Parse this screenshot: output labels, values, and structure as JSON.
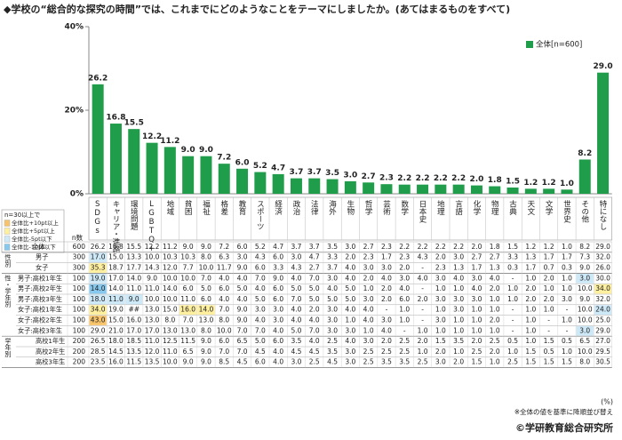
{
  "chart_data": {
    "type": "bar",
    "title": "◆学校の“総合的な探究の時間”では、これまでにどのようなことをテーマにしましたか。(あてはまるものをすべて)",
    "categories": [
      "SDGs",
      "キャリア・進路",
      "環境問題",
      "LGBTQ+",
      "地域",
      "貧困",
      "福祉",
      "格差",
      "教育",
      "スポーツ",
      "経済",
      "政治",
      "法律",
      "海外",
      "生物",
      "哲学",
      "芸術",
      "数学",
      "日本史",
      "地理",
      "言語",
      "化学",
      "物理",
      "古典",
      "天文",
      "文学",
      "世界史",
      "その他",
      "特になし"
    ],
    "series": [
      {
        "name": "全体[n=600]",
        "color": "#1f9d4b",
        "values": [
          26.2,
          16.8,
          15.5,
          12.2,
          11.2,
          9.0,
          9.0,
          7.2,
          6.0,
          5.2,
          4.7,
          3.7,
          3.7,
          3.5,
          3.0,
          2.7,
          2.3,
          2.2,
          2.2,
          2.2,
          2.2,
          2.0,
          1.8,
          1.5,
          1.2,
          1.2,
          1.0,
          8.2,
          29.0
        ],
        "value_labels": [
          "26.2",
          "16.8",
          "15.5",
          "12.2",
          "11.2",
          "9.0",
          "9.0",
          "7.2",
          "6.0",
          "5.2",
          "4.7",
          "3.7",
          "3.7",
          "3.5",
          "3.0",
          "2.7",
          "2.3",
          "2.2",
          "2.2",
          "2.2",
          "2.2",
          "2.0",
          "1.8",
          "1.5",
          "1.2",
          "1.2",
          "1.0",
          "8.2",
          "29.0"
        ]
      }
    ],
    "ylim": [
      0,
      40
    ],
    "yticks": [
      {
        "value": 0,
        "label": "0%"
      },
      {
        "value": 20,
        "label": "20%"
      },
      {
        "value": 40,
        "label": "40%"
      }
    ],
    "legend": "top-right"
  },
  "table": {
    "n_header": "n数",
    "highlight_title": "n=30以上で",
    "highlights": [
      {
        "label": "全体比+10pt以上",
        "threshold": 10,
        "color": "#f7c46c"
      },
      {
        "label": "全体比+5pt以上",
        "threshold": 5,
        "color": "#fff0a0"
      },
      {
        "label": "全体比-5pt以下",
        "threshold": -5,
        "color": "#cde8f7"
      },
      {
        "label": "全体比-10pt以下",
        "threshold": -10,
        "color": "#86c8ee"
      }
    ],
    "total": {
      "label": "全体",
      "n": "600",
      "values": [
        "26.2",
        "16.8",
        "15.5",
        "12.2",
        "11.2",
        "9.0",
        "9.0",
        "7.2",
        "6.0",
        "5.2",
        "4.7",
        "3.7",
        "3.7",
        "3.5",
        "3.0",
        "2.7",
        "2.3",
        "2.2",
        "2.2",
        "2.2",
        "2.2",
        "2.0",
        "1.8",
        "1.5",
        "1.2",
        "1.2",
        "1.0",
        "8.2",
        "29.0"
      ]
    },
    "groups": [
      {
        "label": "性別",
        "rows": [
          {
            "label": "男子",
            "n": "300",
            "values": [
              "17.0",
              "15.0",
              "13.3",
              "10.0",
              "10.3",
              "10.3",
              "8.0",
              "6.3",
              "3.0",
              "4.3",
              "6.0",
              "3.0",
              "4.7",
              "3.3",
              "2.0",
              "2.3",
              "1.7",
              "2.3",
              "4.3",
              "2.0",
              "3.0",
              "2.7",
              "2.7",
              "3.3",
              "1.3",
              "1.7",
              "1.7",
              "7.3",
              "32.0"
            ]
          },
          {
            "label": "女子",
            "n": "300",
            "values": [
              "35.3",
              "18.7",
              "17.7",
              "14.3",
              "12.0",
              "7.7",
              "10.0",
              "11.7",
              "9.0",
              "6.0",
              "3.3",
              "4.3",
              "2.7",
              "3.7",
              "4.0",
              "3.0",
              "3.0",
              "2.0",
              "-",
              "2.3",
              "1.3",
              "1.7",
              "1.3",
              "0.3",
              "1.7",
              "0.7",
              "0.3",
              "9.0",
              "26.0"
            ]
          }
        ]
      },
      {
        "label": "性・学年別",
        "rows": [
          {
            "label": "男子:高校1年生",
            "n": "100",
            "values": [
              "19.0",
              "17.0",
              "14.0",
              "9.0",
              "10.0",
              "10.0",
              "7.0",
              "4.0",
              "4.0",
              "7.0",
              "9.0",
              "4.0",
              "7.0",
              "3.0",
              "4.0",
              "2.0",
              "4.0",
              "3.0",
              "4.0",
              "3.0",
              "4.0",
              "3.0",
              "4.0",
              "-",
              "1.0",
              "2.0",
              "1.0",
              "3.0",
              "30.0"
            ]
          },
          {
            "label": "男子:高校2年生",
            "n": "100",
            "values": [
              "14.0",
              "14.0",
              "11.0",
              "11.0",
              "14.0",
              "6.0",
              "5.0",
              "6.0",
              "5.0",
              "4.0",
              "6.0",
              "5.0",
              "5.0",
              "4.0",
              "5.0",
              "1.0",
              "2.0",
              "4.0",
              "-",
              "1.0",
              "1.0",
              "4.0",
              "2.0",
              "1.0",
              "2.0",
              "1.0",
              "1.0",
              "10.0",
              "34.0"
            ]
          },
          {
            "label": "男子:高校3年生",
            "n": "100",
            "values": [
              "18.0",
              "11.0",
              "9.0",
              "10.0",
              "10.0",
              "11.0",
              "6.0",
              "4.0",
              "4.0",
              "5.0",
              "6.0",
              "7.0",
              "5.0",
              "5.0",
              "5.0",
              "3.0",
              "2.0",
              "6.0",
              "2.0",
              "3.0",
              "3.0",
              "3.0",
              "1.0",
              "1.0",
              "2.0",
              "2.0",
              "3.0",
              "9.0",
              "32.0"
            ]
          },
          {
            "label": "女子:高校1年生",
            "n": "100",
            "values": [
              "34.0",
              "19.0",
              "##",
              "13.0",
              "15.0",
              "16.0",
              "14.0",
              "7.0",
              "9.0",
              "3.0",
              "3.0",
              "4.0",
              "2.0",
              "3.0",
              "4.0",
              "4.0",
              "-",
              "1.0",
              "-",
              "1.0",
              "3.0",
              "1.0",
              "1.0",
              "-",
              "1.0",
              "1.0",
              "-",
              "10.0",
              "24.0"
            ]
          },
          {
            "label": "女子:高校2年生",
            "n": "100",
            "values": [
              "43.0",
              "15.0",
              "16.0",
              "13.0",
              "8.0",
              "7.0",
              "13.0",
              "8.0",
              "9.0",
              "4.0",
              "3.0",
              "4.0",
              "4.0",
              "3.0",
              "1.0",
              "4.0",
              "3.0",
              "1.0",
              "-",
              "3.0",
              "1.0",
              "1.0",
              "2.0",
              "-",
              "1.0",
              "-",
              "1.0",
              "10.0",
              "25.0"
            ]
          },
          {
            "label": "女子:高校3年生",
            "n": "100",
            "values": [
              "29.0",
              "21.0",
              "17.0",
              "17.0",
              "13.0",
              "13.0",
              "8.0",
              "10.0",
              "7.0",
              "7.0",
              "4.0",
              "5.0",
              "7.0",
              "3.0",
              "3.0",
              "1.0",
              "4.0",
              "-",
              "1.0",
              "1.0",
              "1.0",
              "1.0",
              "1.0",
              "-",
              "1.0",
              "-",
              "-",
              "3.0",
              "29.0"
            ]
          }
        ]
      },
      {
        "label": "学年別",
        "rows": [
          {
            "label": "高校1年生",
            "n": "200",
            "values": [
              "26.5",
              "18.0",
              "18.5",
              "11.0",
              "12.5",
              "11.5",
              "9.0",
              "6.0",
              "6.5",
              "5.0",
              "6.0",
              "3.5",
              "4.0",
              "2.5",
              "4.0",
              "3.0",
              "2.0",
              "2.5",
              "2.0",
              "1.5",
              "3.5",
              "2.0",
              "2.5",
              "0.5",
              "1.0",
              "1.5",
              "0.5",
              "6.5",
              "27.0"
            ]
          },
          {
            "label": "高校2年生",
            "n": "200",
            "values": [
              "28.5",
              "14.5",
              "13.5",
              "12.0",
              "11.0",
              "6.5",
              "9.0",
              "7.0",
              "7.0",
              "4.5",
              "4.0",
              "4.5",
              "4.5",
              "3.5",
              "3.0",
              "2.5",
              "2.5",
              "2.5",
              "1.0",
              "2.0",
              "1.0",
              "2.5",
              "2.0",
              "1.0",
              "1.5",
              "0.5",
              "1.0",
              "10.0",
              "29.5"
            ]
          },
          {
            "label": "高校3年生",
            "n": "200",
            "values": [
              "23.5",
              "16.0",
              "11.5",
              "13.5",
              "10.0",
              "9.0",
              "9.0",
              "8.5",
              "4.5",
              "6.0",
              "4.0",
              "3.0",
              "2.5",
              "4.5",
              "3.0",
              "2.5",
              "3.5",
              "3.5",
              "2.5",
              "3.0",
              "2.0",
              "1.5",
              "1.0",
              "2.5",
              "1.5",
              "1.5",
              "1.5",
              "8.0",
              "30.5"
            ]
          }
        ]
      }
    ]
  },
  "notes": {
    "unit": "(%)",
    "sort_note": "※全体の値を基準に降順並び替え",
    "copyright": "©学研教育総合研究所"
  }
}
